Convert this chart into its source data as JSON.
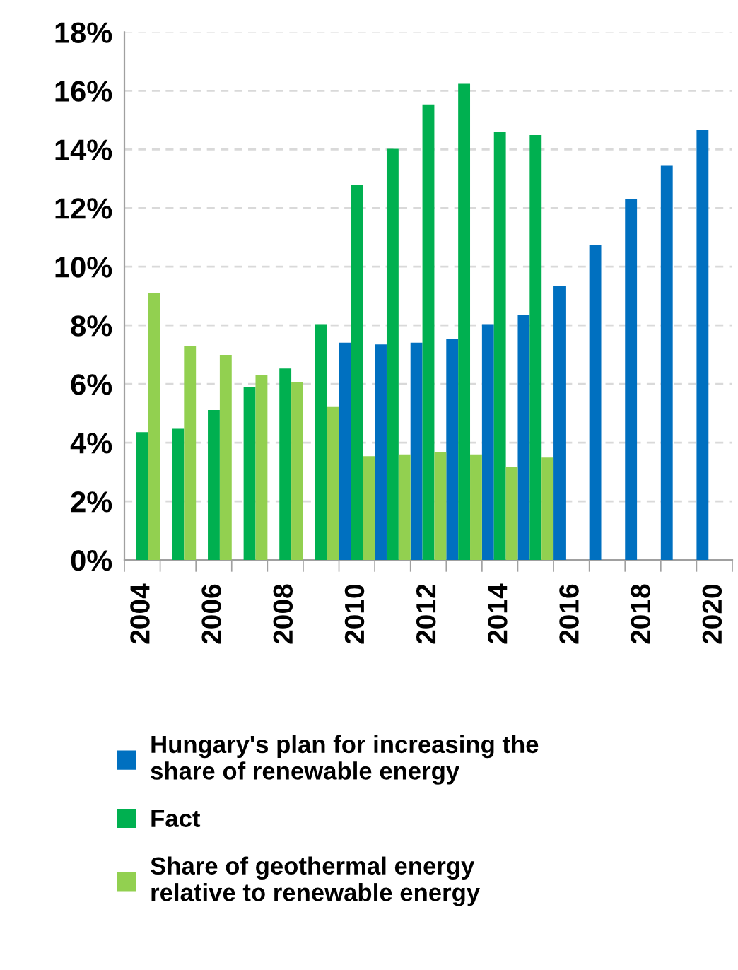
{
  "chart_data": {
    "type": "bar",
    "categories": [
      "2004",
      null,
      "2006",
      null,
      "2008",
      null,
      "2010",
      null,
      "2012",
      null,
      "2014",
      null,
      "2016",
      null,
      "2018",
      null,
      "2020"
    ],
    "series": [
      {
        "name": "Hungary's plan for increasing the\nshare of renewable energy",
        "color": "#0070c0",
        "values": [
          null,
          null,
          null,
          null,
          null,
          null,
          7.41,
          7.35,
          7.41,
          7.52,
          8.04,
          8.34,
          9.34,
          10.74,
          12.32,
          13.44,
          14.66
        ]
      },
      {
        "name": "Fact",
        "color": "#00b050",
        "values": [
          4.36,
          4.47,
          5.11,
          5.88,
          6.53,
          8.04,
          12.78,
          14.02,
          15.53,
          16.24,
          14.6,
          14.49,
          null,
          null,
          null,
          null,
          null
        ]
      },
      {
        "name": "Share of geothermal energy\nrelative to renewable energy",
        "color": "#92d050",
        "values": [
          9.1,
          7.28,
          6.99,
          6.3,
          6.06,
          5.24,
          3.54,
          3.6,
          3.67,
          3.6,
          3.18,
          3.49,
          null,
          null,
          null,
          null,
          null
        ]
      }
    ],
    "ylim": [
      0,
      18
    ],
    "yticks": [
      {
        "value": 0,
        "label": "0%"
      },
      {
        "value": 2,
        "label": "2%"
      },
      {
        "value": 4,
        "label": "4%"
      },
      {
        "value": 6,
        "label": "6%"
      },
      {
        "value": 8,
        "label": "8%"
      },
      {
        "value": 10,
        "label": "10%"
      },
      {
        "value": 12,
        "label": "12%"
      },
      {
        "value": 14,
        "label": "14%"
      },
      {
        "value": 16,
        "label": "16%"
      },
      {
        "value": 18,
        "label": "18%"
      }
    ],
    "grid": "y",
    "legend": "bottom"
  }
}
